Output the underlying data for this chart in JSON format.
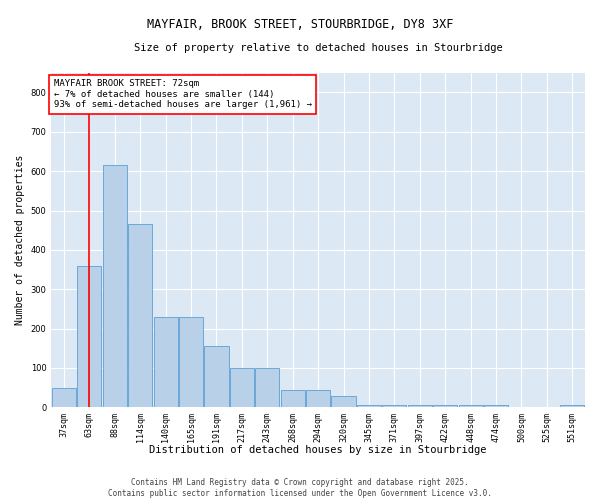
{
  "title1": "MAYFAIR, BROOK STREET, STOURBRIDGE, DY8 3XF",
  "title2": "Size of property relative to detached houses in Stourbridge",
  "xlabel": "Distribution of detached houses by size in Stourbridge",
  "ylabel": "Number of detached properties",
  "categories": [
    "37sqm",
    "63sqm",
    "88sqm",
    "114sqm",
    "140sqm",
    "165sqm",
    "191sqm",
    "217sqm",
    "243sqm",
    "268sqm",
    "294sqm",
    "320sqm",
    "345sqm",
    "371sqm",
    "397sqm",
    "422sqm",
    "448sqm",
    "474sqm",
    "500sqm",
    "525sqm",
    "551sqm"
  ],
  "values": [
    50,
    360,
    615,
    465,
    230,
    230,
    155,
    100,
    100,
    45,
    45,
    30,
    5,
    5,
    5,
    5,
    5,
    5,
    0,
    0,
    5
  ],
  "bar_color": "#b8d0e8",
  "bar_edge_color": "#5a9fd4",
  "bg_color": "#dce9f5",
  "grid_color": "#ffffff",
  "fig_bg_color": "#ffffff",
  "red_line_index": 1,
  "annotation_title": "MAYFAIR BROOK STREET: 72sqm",
  "annotation_line2": "← 7% of detached houses are smaller (144)",
  "annotation_line3": "93% of semi-detached houses are larger (1,961) →",
  "footer_line1": "Contains HM Land Registry data © Crown copyright and database right 2025.",
  "footer_line2": "Contains public sector information licensed under the Open Government Licence v3.0.",
  "ylim": [
    0,
    850
  ],
  "yticks": [
    0,
    100,
    200,
    300,
    400,
    500,
    600,
    700,
    800
  ],
  "title1_fontsize": 8.5,
  "title2_fontsize": 7.5,
  "ylabel_fontsize": 7,
  "xlabel_fontsize": 7.5,
  "tick_fontsize": 6,
  "ann_fontsize": 6.5,
  "footer_fontsize": 5.5
}
